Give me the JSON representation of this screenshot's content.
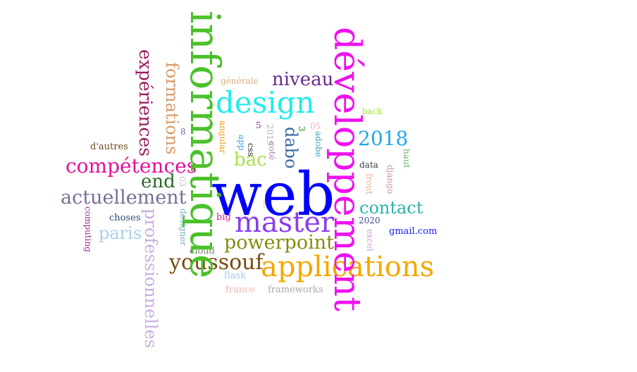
{
  "words": [
    {
      "id": "web",
      "text": "web",
      "color": "#0000ff"
    },
    {
      "id": "informatique",
      "text": "informatique",
      "color": "#4ac12a"
    },
    {
      "id": "developpement",
      "text": "développement",
      "color": "#ee11ee"
    },
    {
      "id": "applications",
      "text": "applications",
      "color": "#f4a800"
    },
    {
      "id": "master",
      "text": "master",
      "color": "#8a3ff0"
    },
    {
      "id": "design",
      "text": "design",
      "color": "#22ecec"
    },
    {
      "id": "competences",
      "text": "compétences",
      "color": "#e0119a"
    },
    {
      "id": "professionnelles",
      "text": "professionnelles",
      "color": "#c8aede"
    },
    {
      "id": "actuellement",
      "text": "actuellement",
      "color": "#7a6e98"
    },
    {
      "id": "experiences",
      "text": "expériences",
      "color": "#9a1a60"
    },
    {
      "id": "formations",
      "text": "formations",
      "color": "#d89a6a"
    },
    {
      "id": "youssouf",
      "text": "youssouf",
      "color": "#7a4a10"
    },
    {
      "id": "powerpoint",
      "text": "powerpoint",
      "color": "#8a8a10"
    },
    {
      "id": "dabo",
      "text": "dabo",
      "color": "#3a6aa0"
    },
    {
      "id": "contact",
      "text": "contact",
      "color": "#2ab2a8"
    },
    {
      "id": "y2018",
      "text": "2018",
      "color": "#22a8e8"
    },
    {
      "id": "niveau",
      "text": "niveau",
      "color": "#6a2a90"
    },
    {
      "id": "bac",
      "text": "bac",
      "color": "#a8e042"
    },
    {
      "id": "end",
      "text": "end",
      "color": "#2a6a2a"
    },
    {
      "id": "paris",
      "text": "paris",
      "color": "#aad0e8"
    },
    {
      "id": "gmail",
      "text": "gmail.com",
      "color": "#1a1aee"
    },
    {
      "id": "frameworks",
      "text": "frameworks",
      "color": "#a8a8a8"
    },
    {
      "id": "france",
      "text": "france",
      "color": "#f4b4b4"
    },
    {
      "id": "flask",
      "text": "flask",
      "color": "#a8c8e8"
    },
    {
      "id": "cloud",
      "text": "cloud",
      "color": "#6a8a6a"
    },
    {
      "id": "choses",
      "text": "choses",
      "color": "#2a4a7a"
    },
    {
      "id": "dautres",
      "text": "d'autres",
      "color": "#6a4a1a"
    },
    {
      "id": "computing",
      "text": "computing",
      "color": "#9a2a8a"
    },
    {
      "id": "designer",
      "text": "designer",
      "color": "#7ab0b0"
    },
    {
      "id": "big",
      "text": "big",
      "color": "#d0209a"
    },
    {
      "id": "y2020",
      "text": "2020",
      "color": "#3a4a9a"
    },
    {
      "id": "excel",
      "text": "excel",
      "color": "#d0a0d0"
    },
    {
      "id": "front",
      "text": "front",
      "color": "#e8b090"
    },
    {
      "id": "data",
      "text": "data",
      "color": "#3a3a3a"
    },
    {
      "id": "django",
      "text": "django",
      "color": "#d09090"
    },
    {
      "id": "haut",
      "text": "haut",
      "color": "#6ab06a"
    },
    {
      "id": "back",
      "text": "back",
      "color": "#a8e042"
    },
    {
      "id": "generale",
      "text": "générale",
      "color": "#d8b080"
    },
    {
      "id": "angular",
      "text": "angular",
      "color": "#e8a020"
    },
    {
      "id": "app",
      "text": "app",
      "color": "#3aa0e0"
    },
    {
      "id": "css",
      "text": "css",
      "color": "#2a2a2a"
    },
    {
      "id": "y2019",
      "text": "2019",
      "color": "#b0b0b0"
    },
    {
      "id": "cote",
      "text": "coté",
      "color": "#b07ab0"
    },
    {
      "id": "adobe",
      "text": "adobe",
      "color": "#3aa0c0"
    },
    {
      "id": "n05",
      "text": "05",
      "color": "#f0b0c0"
    },
    {
      "id": "n5",
      "text": "5",
      "color": "#9a2a9a"
    },
    {
      "id": "n8",
      "text": "8",
      "color": "#6a6aa0"
    },
    {
      "id": "n3",
      "text": "3",
      "color": "#2a8a2a"
    },
    {
      "id": "n03",
      "text": "03",
      "color": "#c0c0c0"
    },
    {
      "id": "n1",
      "text": "1",
      "color": "#f0d0a0"
    }
  ]
}
